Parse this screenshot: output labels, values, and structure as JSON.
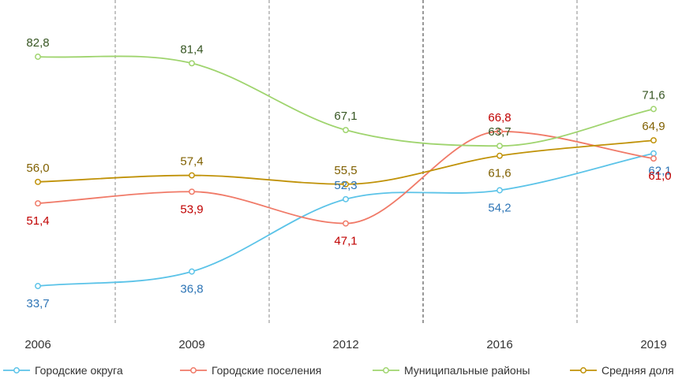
{
  "chart_data": {
    "type": "line",
    "categories": [
      "2006",
      "2009",
      "2012",
      "2016",
      "2019"
    ],
    "ylim": [
      30,
      86
    ],
    "grid": "vertical-dashed",
    "legend_position": "bottom",
    "series": [
      {
        "name": "Городские округа",
        "color": "#5bc3e8",
        "label_color": "#2e75b6",
        "values": [
          33.7,
          36.8,
          52.3,
          54.2,
          62.1
        ],
        "labels": [
          "33,7",
          "36,8",
          "52,3",
          "54,2",
          "62,1"
        ]
      },
      {
        "name": "Городские поселения",
        "color": "#f07a68",
        "label_color": "#c00000",
        "values": [
          51.4,
          53.9,
          47.1,
          66.8,
          61.0
        ],
        "labels": [
          "51,4",
          "53,9",
          "47,1",
          "66,8",
          "61,0"
        ]
      },
      {
        "name": "Муниципальные районы",
        "color": "#9fd46e",
        "label_color": "#375623",
        "values": [
          82.8,
          81.4,
          67.1,
          63.7,
          71.6
        ],
        "labels": [
          "82,8",
          "81,4",
          "67,1",
          "63,7",
          "71,6"
        ]
      },
      {
        "name": "Средняя доля",
        "color": "#c09208",
        "label_color": "#806000",
        "values": [
          56.0,
          57.4,
          55.5,
          61.6,
          64.9
        ],
        "labels": [
          "56,0",
          "57,4",
          "55,5",
          "61,6",
          "64,9"
        ]
      }
    ]
  }
}
